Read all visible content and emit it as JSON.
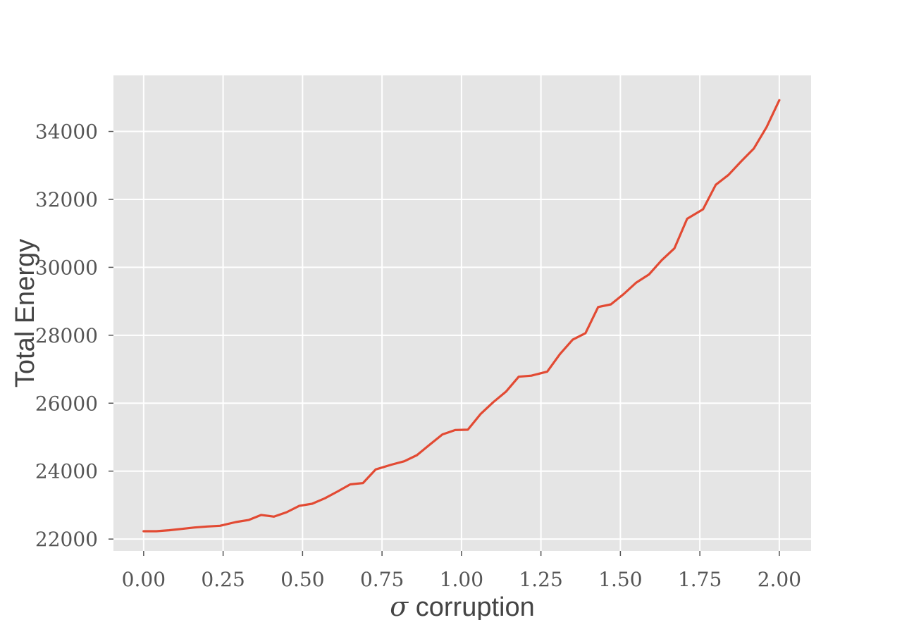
{
  "chart_data": {
    "type": "line",
    "title": "",
    "xlabel_symbol": "σ",
    "xlabel_text": "corruption",
    "ylabel": "Total Energy",
    "xlim": [
      -0.095,
      2.1
    ],
    "ylim": [
      21650,
      35650
    ],
    "xticks": [
      "0.00",
      "0.25",
      "0.50",
      "0.75",
      "1.00",
      "1.25",
      "1.50",
      "1.75",
      "2.00"
    ],
    "yticks": [
      "22000",
      "24000",
      "26000",
      "28000",
      "30000",
      "32000",
      "34000"
    ],
    "grid": true,
    "line_color": "#E24A33",
    "background_color": "#E5E5E5",
    "series": [
      {
        "x": [
          0.0,
          0.04,
          0.08,
          0.12,
          0.16,
          0.2,
          0.24,
          0.29,
          0.33,
          0.37,
          0.41,
          0.45,
          0.49,
          0.53,
          0.57,
          0.61,
          0.65,
          0.69,
          0.73,
          0.78,
          0.82,
          0.86,
          0.9,
          0.94,
          0.98,
          1.02,
          1.06,
          1.1,
          1.14,
          1.18,
          1.22,
          1.27,
          1.31,
          1.35,
          1.39,
          1.43,
          1.47,
          1.51,
          1.55,
          1.59,
          1.63,
          1.67,
          1.71,
          1.76,
          1.8,
          1.84,
          1.88,
          1.92,
          1.96,
          2.0
        ],
        "y": [
          22230,
          22230,
          22260,
          22300,
          22340,
          22370,
          22390,
          22500,
          22560,
          22710,
          22660,
          22790,
          22980,
          23040,
          23200,
          23400,
          23610,
          23650,
          24050,
          24190,
          24290,
          24470,
          24780,
          25080,
          25210,
          25220,
          25680,
          26030,
          26340,
          26780,
          26810,
          26930,
          27450,
          27870,
          28060,
          28830,
          28910,
          29210,
          29550,
          29790,
          30210,
          30560,
          31430,
          31710,
          32430,
          32720,
          33120,
          33500,
          34130,
          34920
        ]
      }
    ]
  }
}
